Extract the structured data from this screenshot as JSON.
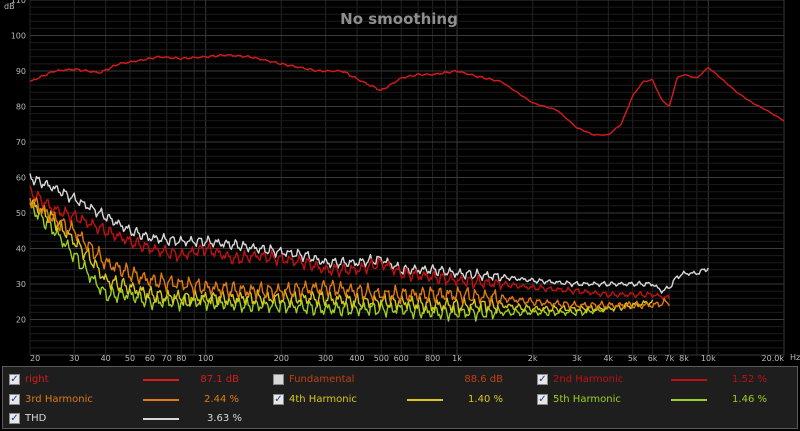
{
  "title": "No smoothing",
  "y_unit": "dB",
  "x_unit": "Hz",
  "colors": {
    "right": "#d81a1a",
    "h2": "#c01010",
    "h3": "#e07a10",
    "h4": "#d8c81a",
    "h5": "#9ccf1e",
    "thd": "#d8d8d8",
    "fundamental": "#c04010",
    "grid": "#3a3a3a",
    "background": "#000000"
  },
  "legend": [
    {
      "name": "right",
      "value": "87.1 dB",
      "checked": true,
      "color": "#d81a1a"
    },
    {
      "name": "Fundamental",
      "value": "88.6 dB",
      "checked": false,
      "color": "#c04010"
    },
    {
      "name": "2nd Harmonic",
      "value": "1.52 %",
      "checked": true,
      "color": "#c01010"
    },
    {
      "name": "3rd Harmonic",
      "value": "2.44 %",
      "checked": true,
      "color": "#e07a10"
    },
    {
      "name": "4th Harmonic",
      "value": "1.40 %",
      "checked": true,
      "color": "#d8c81a"
    },
    {
      "name": "5th Harmonic",
      "value": "1.46 %",
      "checked": true,
      "color": "#9ccf1e"
    },
    {
      "name": "THD",
      "value": "3.63 %",
      "checked": true,
      "color": "#d8d8d8"
    }
  ],
  "chart_data": {
    "type": "line",
    "title": "No smoothing",
    "x_scale": "log",
    "xlim": [
      20,
      20000
    ],
    "ylim": [
      10,
      110
    ],
    "grid": true,
    "x_ticks": [
      20,
      30,
      40,
      50,
      60,
      70,
      80,
      100,
      200,
      300,
      400,
      500,
      600,
      800,
      1000,
      2000,
      3000,
      4000,
      5000,
      6000,
      7000,
      8000,
      10000,
      20000
    ],
    "x_tick_labels": [
      "20",
      "30",
      "40",
      "50",
      "60",
      "70",
      "80",
      "100",
      "200",
      "300",
      "400",
      "500",
      "600",
      "800",
      "1k",
      "2k",
      "3k",
      "4k",
      "5k",
      "6k",
      "7k",
      "8k",
      "10k",
      "20.0k"
    ],
    "y_ticks": [
      20,
      30,
      40,
      50,
      60,
      70,
      80,
      90,
      100,
      110
    ],
    "series": [
      {
        "name": "right",
        "color": "#d81a1a",
        "points": [
          [
            20,
            87
          ],
          [
            25,
            90
          ],
          [
            30,
            90.5
          ],
          [
            38,
            89.5
          ],
          [
            45,
            92
          ],
          [
            55,
            93
          ],
          [
            65,
            94
          ],
          [
            80,
            93.5
          ],
          [
            100,
            94
          ],
          [
            120,
            94.5
          ],
          [
            150,
            94
          ],
          [
            200,
            92
          ],
          [
            280,
            90
          ],
          [
            350,
            90
          ],
          [
            420,
            87
          ],
          [
            500,
            84.5
          ],
          [
            600,
            88
          ],
          [
            700,
            89
          ],
          [
            800,
            89
          ],
          [
            1000,
            90
          ],
          [
            1200,
            88.5
          ],
          [
            1500,
            87
          ],
          [
            2000,
            81
          ],
          [
            2500,
            79
          ],
          [
            3000,
            74
          ],
          [
            3500,
            72
          ],
          [
            4000,
            72
          ],
          [
            4500,
            75
          ],
          [
            5000,
            83
          ],
          [
            5500,
            87
          ],
          [
            6000,
            87.5
          ],
          [
            6500,
            82
          ],
          [
            7000,
            80
          ],
          [
            7500,
            88
          ],
          [
            8000,
            89
          ],
          [
            9000,
            88
          ],
          [
            10000,
            91
          ],
          [
            11000,
            88.5
          ],
          [
            13000,
            84
          ],
          [
            15000,
            81
          ],
          [
            17000,
            79
          ],
          [
            20000,
            76
          ]
        ]
      },
      {
        "name": "2nd Harmonic",
        "color": "#c01010",
        "points": [
          [
            20,
            56
          ],
          [
            25,
            51
          ],
          [
            30,
            49
          ],
          [
            40,
            45
          ],
          [
            50,
            42
          ],
          [
            60,
            40
          ],
          [
            80,
            38
          ],
          [
            100,
            40
          ],
          [
            130,
            37
          ],
          [
            160,
            38
          ],
          [
            200,
            37
          ],
          [
            250,
            36
          ],
          [
            300,
            34
          ],
          [
            400,
            34
          ],
          [
            500,
            36
          ],
          [
            600,
            33
          ],
          [
            800,
            32
          ],
          [
            1000,
            31
          ],
          [
            1500,
            30
          ],
          [
            2000,
            29
          ],
          [
            3000,
            28
          ],
          [
            4000,
            27
          ],
          [
            5000,
            27
          ],
          [
            6000,
            27
          ],
          [
            7000,
            26
          ]
        ]
      },
      {
        "name": "3rd Harmonic",
        "color": "#e07a10",
        "points": [
          [
            20,
            54
          ],
          [
            25,
            48
          ],
          [
            30,
            45
          ],
          [
            35,
            40
          ],
          [
            40,
            36
          ],
          [
            50,
            33
          ],
          [
            60,
            31
          ],
          [
            80,
            30
          ],
          [
            100,
            29
          ],
          [
            150,
            28
          ],
          [
            200,
            28
          ],
          [
            300,
            29
          ],
          [
            400,
            28
          ],
          [
            500,
            27
          ],
          [
            600,
            27
          ],
          [
            800,
            27
          ],
          [
            1000,
            27
          ],
          [
            1500,
            26
          ],
          [
            2000,
            25
          ],
          [
            3000,
            24
          ],
          [
            4000,
            24
          ],
          [
            5000,
            24
          ],
          [
            6000,
            24
          ],
          [
            7000,
            25
          ]
        ]
      },
      {
        "name": "4th Harmonic",
        "color": "#d8c81a",
        "points": [
          [
            20,
            53
          ],
          [
            25,
            48
          ],
          [
            30,
            42
          ],
          [
            35,
            37
          ],
          [
            40,
            31
          ],
          [
            50,
            29
          ],
          [
            60,
            27
          ],
          [
            80,
            26
          ],
          [
            100,
            26
          ],
          [
            150,
            26
          ],
          [
            200,
            26
          ],
          [
            300,
            26
          ],
          [
            400,
            25
          ],
          [
            500,
            25
          ],
          [
            600,
            25
          ],
          [
            800,
            24
          ],
          [
            1000,
            24
          ],
          [
            1500,
            24
          ],
          [
            2000,
            23
          ],
          [
            3000,
            23
          ],
          [
            4000,
            23
          ],
          [
            5000,
            24
          ],
          [
            6000,
            25
          ]
        ]
      },
      {
        "name": "5th Harmonic",
        "color": "#9ccf1e",
        "points": [
          [
            20,
            52
          ],
          [
            25,
            45
          ],
          [
            30,
            38
          ],
          [
            35,
            32
          ],
          [
            40,
            27
          ],
          [
            50,
            27
          ],
          [
            60,
            25
          ],
          [
            80,
            25
          ],
          [
            100,
            25
          ],
          [
            150,
            24
          ],
          [
            200,
            24
          ],
          [
            300,
            23
          ],
          [
            400,
            23
          ],
          [
            500,
            23
          ],
          [
            600,
            23
          ],
          [
            800,
            22
          ],
          [
            1000,
            22
          ],
          [
            1500,
            22
          ],
          [
            2000,
            22
          ],
          [
            3000,
            22
          ],
          [
            4000,
            23
          ]
        ]
      },
      {
        "name": "THD",
        "color": "#d8d8d8",
        "points": [
          [
            20,
            60
          ],
          [
            25,
            57
          ],
          [
            30,
            54
          ],
          [
            40,
            49
          ],
          [
            50,
            45
          ],
          [
            60,
            43
          ],
          [
            80,
            42
          ],
          [
            100,
            42
          ],
          [
            130,
            41
          ],
          [
            160,
            40
          ],
          [
            200,
            39
          ],
          [
            250,
            38
          ],
          [
            300,
            36
          ],
          [
            400,
            36
          ],
          [
            500,
            37
          ],
          [
            600,
            34
          ],
          [
            800,
            34
          ],
          [
            1000,
            33
          ],
          [
            1500,
            32
          ],
          [
            2000,
            31
          ],
          [
            3000,
            30
          ],
          [
            4000,
            30
          ],
          [
            5000,
            30
          ],
          [
            6000,
            30
          ],
          [
            6500,
            28
          ],
          [
            7000,
            29
          ],
          [
            7500,
            32
          ],
          [
            8000,
            33
          ],
          [
            9000,
            33
          ],
          [
            10000,
            34.5
          ]
        ]
      }
    ]
  }
}
